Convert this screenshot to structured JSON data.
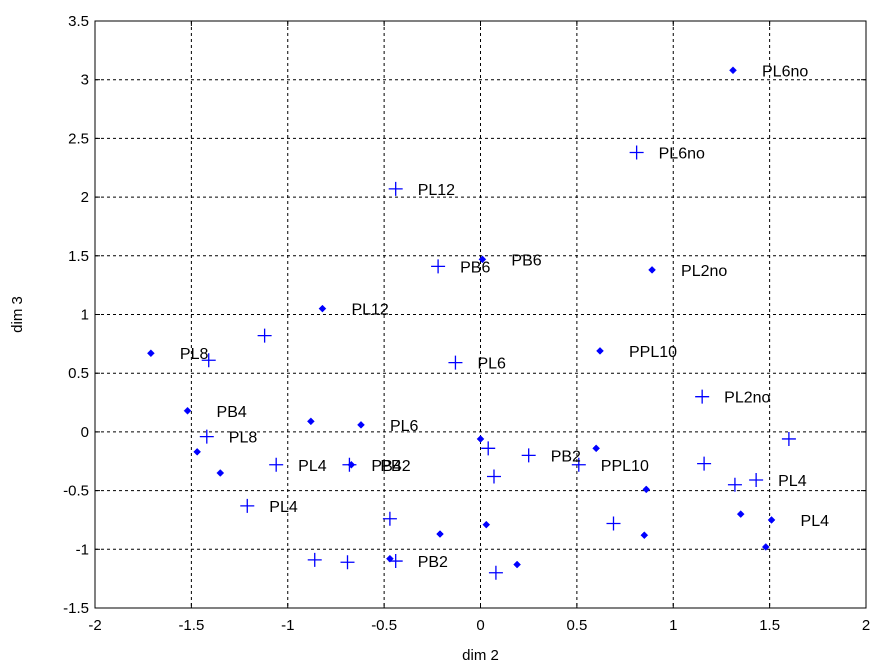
{
  "chart_data": {
    "type": "scatter",
    "title": "",
    "xlabel": "dim 2",
    "ylabel": "dim 3",
    "xlim": [
      -2,
      2
    ],
    "ylim": [
      -1.5,
      3.5
    ],
    "xticks": [
      -2,
      -1.5,
      -1,
      -0.5,
      0,
      0.5,
      1,
      1.5,
      2
    ],
    "yticks": [
      -1.5,
      -1,
      -0.5,
      0,
      0.5,
      1,
      1.5,
      2,
      2.5,
      3,
      3.5
    ],
    "xtick_labels": [
      "-2",
      "-1.5",
      "-1",
      "-0.5",
      "0",
      "0.5",
      "1",
      "1.5",
      "2"
    ],
    "ytick_labels": [
      "-1.5",
      "-1",
      "-0.5",
      "0",
      "0.5",
      "1",
      "1.5",
      "2",
      "2.5",
      "3",
      "3.5"
    ],
    "grid": true,
    "marker_color": "#0000ff",
    "series": [
      {
        "marker": "diamond",
        "points": [
          {
            "x": 1.31,
            "y": 3.08,
            "label": "PL6no"
          },
          {
            "x": 0.89,
            "y": 1.38,
            "label": "PL2no"
          },
          {
            "x": 0.01,
            "y": 1.47,
            "label": "PB6"
          },
          {
            "x": -0.82,
            "y": 1.05,
            "label": "PL12"
          },
          {
            "x": -1.71,
            "y": 0.67,
            "label": "PL8"
          },
          {
            "x": 0.62,
            "y": 0.69,
            "label": "PPL10"
          },
          {
            "x": -1.52,
            "y": 0.18,
            "label": "PB4"
          },
          {
            "x": -0.62,
            "y": 0.06,
            "label": "PL6"
          },
          {
            "x": -0.88,
            "y": 0.09,
            "label": ""
          },
          {
            "x": -1.47,
            "y": -0.17,
            "label": ""
          },
          {
            "x": -1.35,
            "y": -0.35,
            "label": ""
          },
          {
            "x": -0.67,
            "y": -0.28,
            "label": "PB2"
          },
          {
            "x": 0.0,
            "y": -0.06,
            "label": ""
          },
          {
            "x": 0.6,
            "y": -0.14,
            "label": ""
          },
          {
            "x": 0.86,
            "y": -0.49,
            "label": ""
          },
          {
            "x": 1.35,
            "y": -0.7,
            "label": ""
          },
          {
            "x": 1.51,
            "y": -0.75,
            "label": "PL4"
          },
          {
            "x": 1.48,
            "y": -0.98,
            "label": ""
          },
          {
            "x": 0.85,
            "y": -0.88,
            "label": ""
          },
          {
            "x": 0.03,
            "y": -0.79,
            "label": ""
          },
          {
            "x": -0.21,
            "y": -0.87,
            "label": ""
          },
          {
            "x": 0.19,
            "y": -1.13,
            "label": ""
          },
          {
            "x": -0.47,
            "y": -1.08,
            "label": ""
          }
        ]
      },
      {
        "marker": "plus",
        "points": [
          {
            "x": 0.81,
            "y": 2.38,
            "label": "PL6no"
          },
          {
            "x": -0.44,
            "y": 2.07,
            "label": "PL12"
          },
          {
            "x": -0.22,
            "y": 1.41,
            "label": "PB6"
          },
          {
            "x": -1.12,
            "y": 0.82,
            "label": ""
          },
          {
            "x": -1.41,
            "y": 0.61,
            "label": ""
          },
          {
            "x": -0.13,
            "y": 0.59,
            "label": "PL6"
          },
          {
            "x": 1.15,
            "y": 0.3,
            "label": "PL2no"
          },
          {
            "x": 1.6,
            "y": -0.06,
            "label": ""
          },
          {
            "x": -1.42,
            "y": -0.04,
            "label": "PL8"
          },
          {
            "x": -1.06,
            "y": -0.28,
            "label": "PL4"
          },
          {
            "x": -0.68,
            "y": -0.28,
            "label": "PB4"
          },
          {
            "x": 0.04,
            "y": -0.14,
            "label": ""
          },
          {
            "x": 0.25,
            "y": -0.2,
            "label": "PB2"
          },
          {
            "x": 0.51,
            "y": -0.28,
            "label": "PPL10"
          },
          {
            "x": 0.07,
            "y": -0.38,
            "label": ""
          },
          {
            "x": 1.16,
            "y": -0.27,
            "label": ""
          },
          {
            "x": 1.32,
            "y": -0.45,
            "label": ""
          },
          {
            "x": 1.43,
            "y": -0.41,
            "label": "PL4"
          },
          {
            "x": -1.21,
            "y": -0.63,
            "label": "PL4"
          },
          {
            "x": -0.47,
            "y": -0.74,
            "label": ""
          },
          {
            "x": 0.69,
            "y": -0.78,
            "label": ""
          },
          {
            "x": -0.86,
            "y": -1.09,
            "label": ""
          },
          {
            "x": -0.69,
            "y": -1.11,
            "label": ""
          },
          {
            "x": -0.44,
            "y": -1.1,
            "label": "PB2"
          },
          {
            "x": 0.08,
            "y": -1.2,
            "label": ""
          }
        ]
      }
    ]
  }
}
